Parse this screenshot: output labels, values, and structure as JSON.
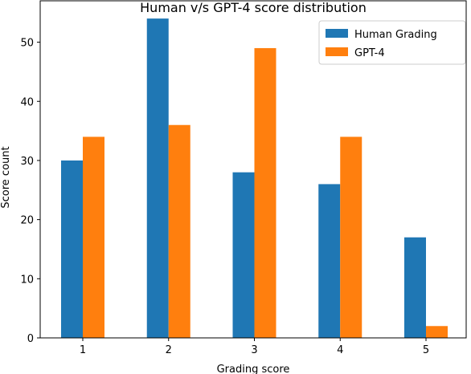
{
  "chart_data": {
    "type": "bar",
    "title": "Human v/s GPT-4 score distribution",
    "xlabel": "Grading score",
    "ylabel": "Score count",
    "categories": [
      "1",
      "2",
      "3",
      "4",
      "5"
    ],
    "series": [
      {
        "name": "Human Grading",
        "color": "#1f77b4",
        "values": [
          30,
          54,
          28,
          26,
          17
        ]
      },
      {
        "name": "GPT-4",
        "color": "#ff7f0e",
        "values": [
          34,
          36,
          49,
          34,
          2
        ]
      }
    ],
    "ylim": [
      0,
      57
    ],
    "yticks": [
      0,
      10,
      20,
      30,
      40,
      50
    ],
    "legend_position": "top-right",
    "grid": false
  }
}
